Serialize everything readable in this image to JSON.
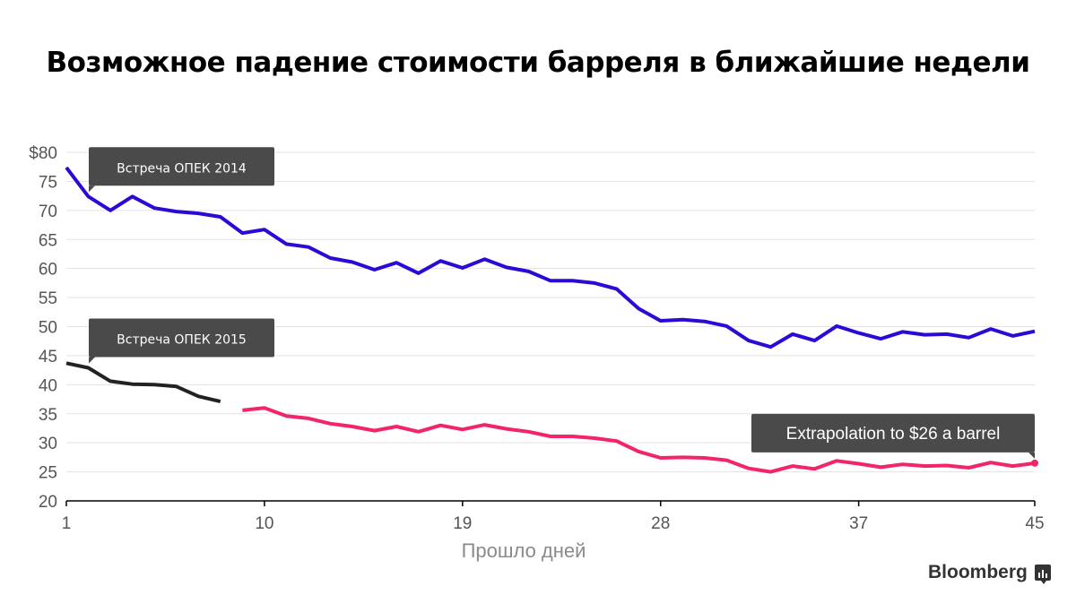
{
  "chart_data": {
    "type": "line",
    "title": "Возможное падение стоимости барреля в ближайшие недели",
    "xlabel": "Прошло дней",
    "ylabel": "",
    "xlim": [
      1,
      45
    ],
    "ylim": [
      20,
      80
    ],
    "x_ticks": [
      1,
      10,
      19,
      28,
      37,
      45
    ],
    "x_tick_labels": [
      "1",
      "10",
      "19",
      "28",
      "37",
      "45"
    ],
    "y_ticks": [
      20,
      25,
      30,
      35,
      40,
      45,
      50,
      55,
      60,
      65,
      70,
      75,
      80
    ],
    "y_tick_labels": [
      "20",
      "25",
      "30",
      "35",
      "40",
      "45",
      "50",
      "55",
      "60",
      "65",
      "70",
      "75",
      "$80"
    ],
    "grid": true,
    "series": [
      {
        "name": "OPEC 2014",
        "color": "#2b0ad6",
        "x": [
          1,
          2,
          3,
          4,
          5,
          6,
          7,
          8,
          9,
          10,
          11,
          12,
          13,
          14,
          15,
          16,
          17,
          18,
          19,
          20,
          21,
          22,
          23,
          24,
          25,
          26,
          27,
          28,
          29,
          30,
          31,
          32,
          33,
          34,
          35,
          36,
          37,
          38,
          39,
          40,
          41,
          42,
          43,
          44,
          45
        ],
        "values": [
          77.4,
          72.4,
          70.0,
          72.4,
          70.4,
          69.8,
          69.5,
          68.9,
          66.1,
          66.7,
          64.2,
          63.7,
          61.8,
          61.1,
          59.8,
          61.0,
          59.2,
          61.3,
          60.1,
          61.6,
          60.2,
          59.5,
          57.9,
          57.9,
          57.5,
          56.5,
          53.1,
          51.0,
          51.2,
          50.9,
          50.1,
          47.6,
          46.5,
          48.7,
          47.6,
          50.1,
          48.9,
          47.9,
          49.1,
          48.6,
          48.7,
          48.1,
          49.6,
          48.4,
          49.2
        ]
      },
      {
        "name": "OPEC 2015",
        "color": "#222222",
        "x": [
          1,
          2,
          3,
          4,
          5,
          6,
          7,
          8
        ],
        "values": [
          43.7,
          42.9,
          40.6,
          40.1,
          40.0,
          39.7,
          38.0,
          37.1
        ]
      },
      {
        "name": "Extrapolation",
        "color": "#f2246a",
        "x": [
          9,
          10,
          11,
          12,
          13,
          14,
          15,
          16,
          17,
          18,
          19,
          20,
          21,
          22,
          23,
          24,
          25,
          26,
          27,
          28,
          29,
          30,
          31,
          32,
          33,
          34,
          35,
          36,
          37,
          38,
          39,
          40,
          41,
          42,
          43,
          44,
          45
        ],
        "values": [
          35.6,
          36.0,
          34.6,
          34.2,
          33.3,
          32.8,
          32.1,
          32.8,
          31.9,
          33.0,
          32.3,
          33.1,
          32.4,
          31.9,
          31.1,
          31.1,
          30.8,
          30.3,
          28.5,
          27.4,
          27.5,
          27.4,
          27.0,
          25.6,
          25.0,
          26.0,
          25.5,
          26.9,
          26.4,
          25.8,
          26.3,
          26.0,
          26.1,
          25.7,
          26.6,
          26.0,
          26.5
        ]
      }
    ],
    "annotations": [
      {
        "text": "Встреча ОПЕК 2014",
        "series": 0,
        "x": 2
      },
      {
        "text": "Встреча ОПЕК 2015",
        "series": 1,
        "x": 2
      },
      {
        "text": "Extrapolation to $26 a barrel",
        "series": 2,
        "x": 45
      }
    ],
    "legend": "none"
  },
  "branding": {
    "logo_text": "Bloomberg"
  }
}
